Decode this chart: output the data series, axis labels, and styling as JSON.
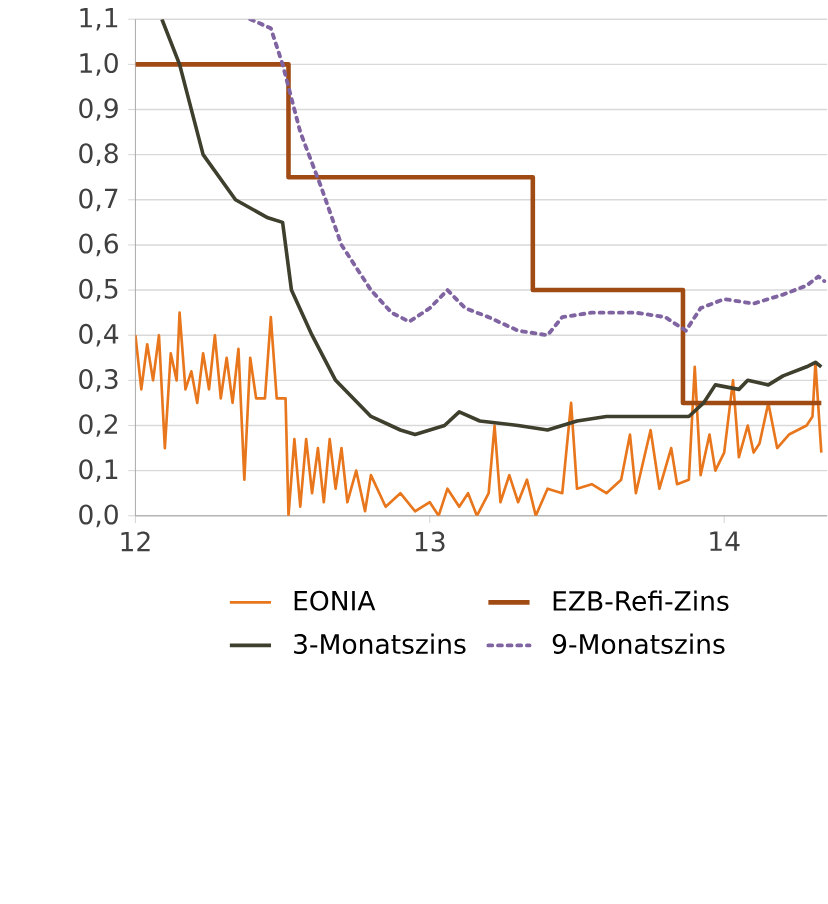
{
  "chart_data": {
    "type": "line",
    "xlim": [
      12,
      14.35
    ],
    "ylim": [
      0,
      1.1
    ],
    "xticks": [
      12,
      13,
      14
    ],
    "yticks": [
      {
        "value": 0,
        "label": "0,0"
      },
      {
        "value": 0.1,
        "label": "0,1"
      },
      {
        "value": 0.2,
        "label": "0,2"
      },
      {
        "value": 0.3,
        "label": "0,3"
      },
      {
        "value": 0.4,
        "label": "0,4"
      },
      {
        "value": 0.5,
        "label": "0,5"
      },
      {
        "value": 0.6,
        "label": "0,6"
      },
      {
        "value": 0.7,
        "label": "0,7"
      },
      {
        "value": 0.8,
        "label": "0,8"
      },
      {
        "value": 0.9,
        "label": "0,9"
      },
      {
        "value": 1.0,
        "label": "1,0"
      },
      {
        "value": 1.1,
        "label": "1,1"
      }
    ],
    "grid": "y",
    "legend": "bottom",
    "marker": "none",
    "series": [
      {
        "name": "EONIA",
        "color": "#e8761c",
        "line_style": "solid",
        "x": [
          12.0,
          12.02,
          12.04,
          12.06,
          12.08,
          12.1,
          12.12,
          12.14,
          12.15,
          12.17,
          12.19,
          12.21,
          12.23,
          12.25,
          12.27,
          12.29,
          12.31,
          12.33,
          12.35,
          12.37,
          12.39,
          12.41,
          12.44,
          12.46,
          12.48,
          12.51,
          12.52,
          12.54,
          12.56,
          12.58,
          12.6,
          12.62,
          12.64,
          12.66,
          12.68,
          12.7,
          12.72,
          12.75,
          12.78,
          12.8,
          12.85,
          12.9,
          12.95,
          13.0,
          13.03,
          13.06,
          13.1,
          13.13,
          13.16,
          13.2,
          13.22,
          13.24,
          13.27,
          13.3,
          13.33,
          13.36,
          13.4,
          13.45,
          13.48,
          13.5,
          13.55,
          13.6,
          13.65,
          13.68,
          13.7,
          13.75,
          13.78,
          13.82,
          13.84,
          13.88,
          13.9,
          13.92,
          13.95,
          13.97,
          14.0,
          14.03,
          14.05,
          14.08,
          14.1,
          14.12,
          14.15,
          14.18,
          14.22,
          14.25,
          14.28,
          14.3,
          14.31,
          14.33
        ],
        "values": [
          0.4,
          0.28,
          0.38,
          0.3,
          0.4,
          0.15,
          0.36,
          0.3,
          0.45,
          0.28,
          0.32,
          0.25,
          0.36,
          0.28,
          0.4,
          0.26,
          0.35,
          0.25,
          0.37,
          0.08,
          0.35,
          0.26,
          0.26,
          0.44,
          0.26,
          0.26,
          0.0,
          0.17,
          0.02,
          0.17,
          0.05,
          0.15,
          0.03,
          0.17,
          0.06,
          0.15,
          0.03,
          0.1,
          0.01,
          0.09,
          0.02,
          0.05,
          0.01,
          0.03,
          0.0,
          0.06,
          0.02,
          0.05,
          0.0,
          0.05,
          0.2,
          0.03,
          0.09,
          0.03,
          0.08,
          0.0,
          0.06,
          0.05,
          0.25,
          0.06,
          0.07,
          0.05,
          0.08,
          0.18,
          0.05,
          0.19,
          0.06,
          0.15,
          0.07,
          0.08,
          0.33,
          0.09,
          0.18,
          0.1,
          0.14,
          0.3,
          0.13,
          0.2,
          0.14,
          0.16,
          0.25,
          0.15,
          0.18,
          0.19,
          0.2,
          0.22,
          0.34,
          0.14
        ]
      },
      {
        "name": "EZB-Refi-Zins",
        "color": "#a04a14",
        "type": "step",
        "line_style": "solid",
        "x": [
          12.0,
          12.52,
          13.35,
          13.86,
          14.33
        ],
        "values": [
          1.0,
          0.75,
          0.5,
          0.25,
          0.25
        ]
      },
      {
        "name": "3-Monatszins",
        "color": "#3f3f2e",
        "line_style": "solid",
        "x": [
          12.09,
          12.15,
          12.23,
          12.34,
          12.45,
          12.5,
          12.53,
          12.6,
          12.68,
          12.8,
          12.9,
          12.95,
          13.05,
          13.1,
          13.17,
          13.3,
          13.4,
          13.5,
          13.6,
          13.75,
          13.88,
          13.93,
          13.97,
          14.05,
          14.08,
          14.15,
          14.2,
          14.28,
          14.31,
          14.33
        ],
        "values": [
          1.1,
          1.0,
          0.8,
          0.7,
          0.66,
          0.65,
          0.5,
          0.4,
          0.3,
          0.22,
          0.19,
          0.18,
          0.2,
          0.23,
          0.21,
          0.2,
          0.19,
          0.21,
          0.22,
          0.22,
          0.22,
          0.25,
          0.29,
          0.28,
          0.3,
          0.29,
          0.31,
          0.33,
          0.34,
          0.33
        ]
      },
      {
        "name": "9-Monatszins",
        "color": "#8064a2",
        "line_style": "dotted",
        "x": [
          12.39,
          12.46,
          12.5,
          12.56,
          12.63,
          12.7,
          12.8,
          12.87,
          12.93,
          13.0,
          13.06,
          13.12,
          13.2,
          13.3,
          13.4,
          13.45,
          13.55,
          13.7,
          13.8,
          13.87,
          13.92,
          14.0,
          14.1,
          14.2,
          14.28,
          14.32,
          14.34
        ],
        "values": [
          1.1,
          1.08,
          1.0,
          0.85,
          0.73,
          0.6,
          0.5,
          0.45,
          0.43,
          0.46,
          0.5,
          0.46,
          0.44,
          0.41,
          0.4,
          0.44,
          0.45,
          0.45,
          0.44,
          0.41,
          0.46,
          0.48,
          0.47,
          0.49,
          0.51,
          0.53,
          0.52
        ]
      }
    ]
  }
}
